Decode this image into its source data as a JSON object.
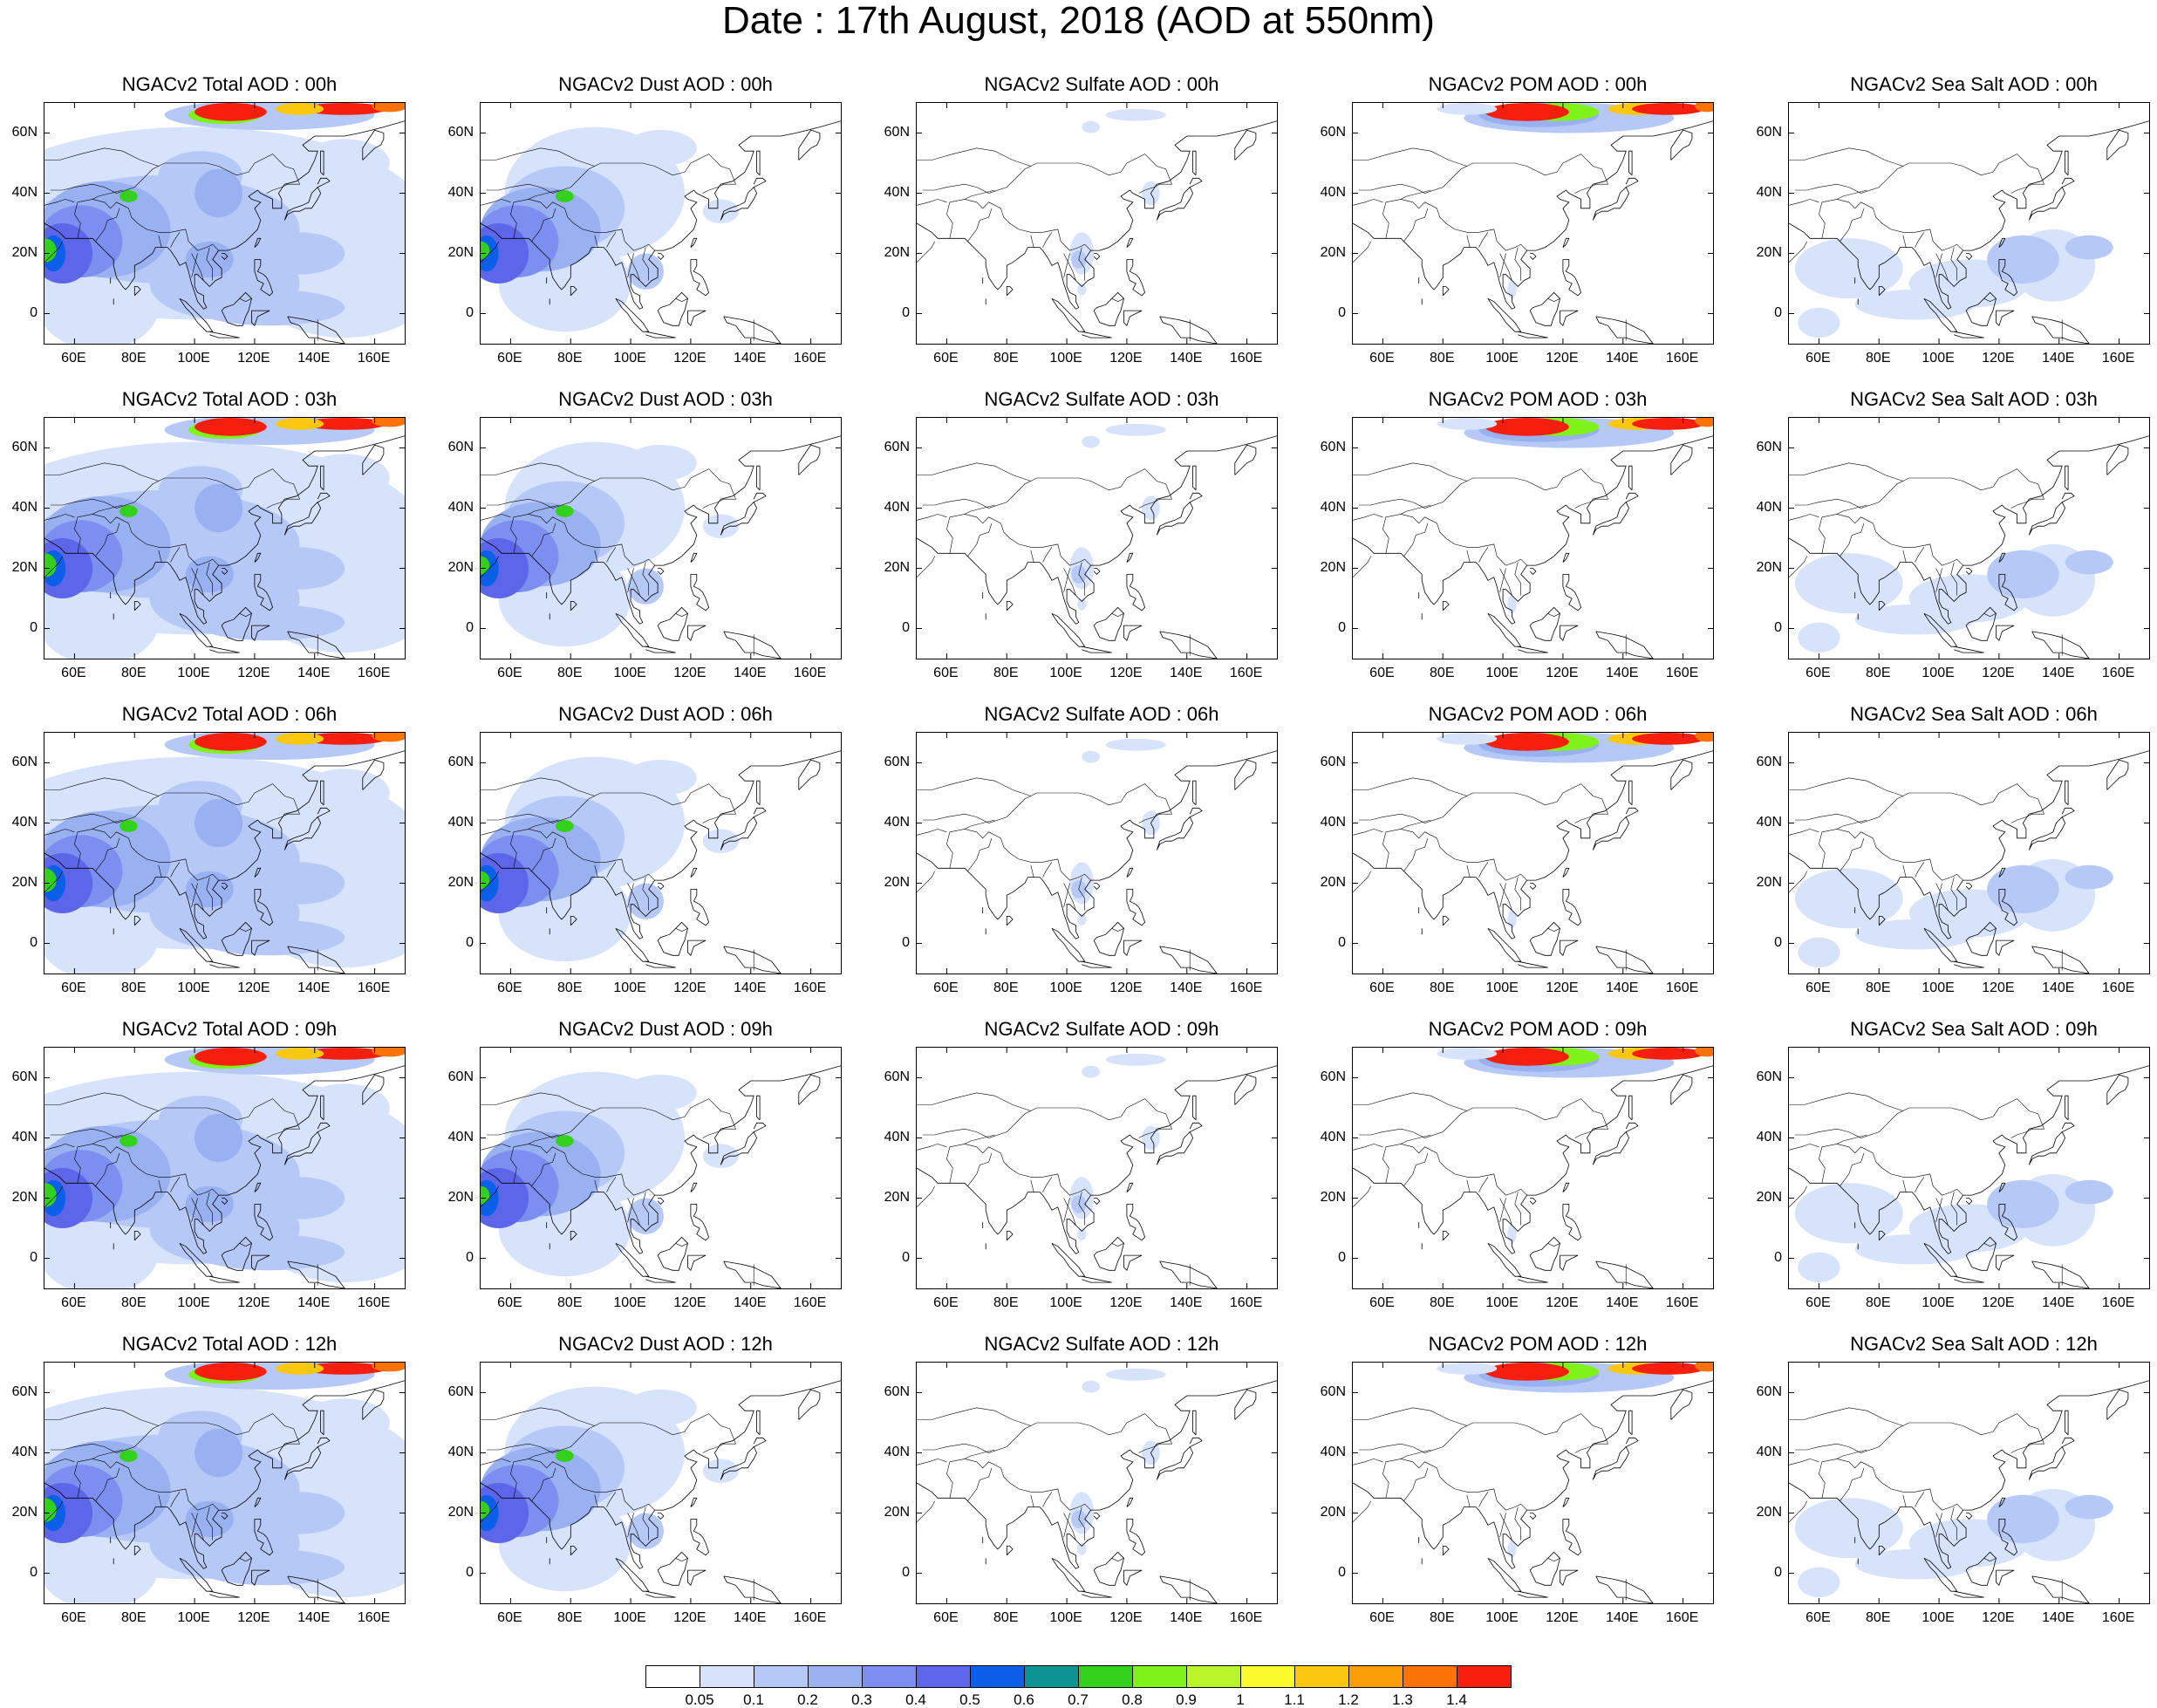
{
  "title": "Date : 17th August, 2018 (AOD at 550nm)",
  "axes": {
    "lat_labels": [
      "60N",
      "40N",
      "20N",
      "0"
    ],
    "lon_labels": [
      "60E",
      "80E",
      "100E",
      "120E",
      "140E",
      "160E"
    ]
  },
  "colors": {
    "levels": [
      "#ffffff",
      "#d7e2fb",
      "#b6c8f6",
      "#99b0f1",
      "#7c8ff0",
      "#5d66e8",
      "#0b5fe8",
      "#0e9493",
      "#33d11c",
      "#7ef219",
      "#b9f52b",
      "#fbfa2b",
      "#fcc70f",
      "#fb9d09",
      "#f97308",
      "#f61f0e"
    ]
  },
  "colorbar": {
    "labels": [
      "0.05",
      "0.1",
      "0.2",
      "0.3",
      "0.4",
      "0.5",
      "0.6",
      "0.7",
      "0.8",
      "0.9",
      "1",
      "1.1",
      "1.2",
      "1.3",
      "1.4"
    ]
  },
  "panels": [
    {
      "title": "NGACv2 Total AOD : 00h",
      "type": "total"
    },
    {
      "title": "NGACv2 Dust AOD : 00h",
      "type": "dust"
    },
    {
      "title": "NGACv2 Sulfate AOD : 00h",
      "type": "sulfate"
    },
    {
      "title": "NGACv2 POM AOD : 00h",
      "type": "pom"
    },
    {
      "title": "NGACv2 Sea Salt AOD : 00h",
      "type": "seasalt"
    },
    {
      "title": "NGACv2 Total AOD : 03h",
      "type": "total"
    },
    {
      "title": "NGACv2 Dust AOD : 03h",
      "type": "dust"
    },
    {
      "title": "NGACv2 Sulfate AOD : 03h",
      "type": "sulfate"
    },
    {
      "title": "NGACv2 POM AOD : 03h",
      "type": "pom"
    },
    {
      "title": "NGACv2 Sea Salt AOD : 03h",
      "type": "seasalt"
    },
    {
      "title": "NGACv2 Total AOD : 06h",
      "type": "total"
    },
    {
      "title": "NGACv2 Dust AOD : 06h",
      "type": "dust"
    },
    {
      "title": "NGACv2 Sulfate AOD : 06h",
      "type": "sulfate"
    },
    {
      "title": "NGACv2 POM AOD : 06h",
      "type": "pom"
    },
    {
      "title": "NGACv2 Sea Salt AOD : 06h",
      "type": "seasalt"
    },
    {
      "title": "NGACv2 Total AOD : 09h",
      "type": "total"
    },
    {
      "title": "NGACv2 Dust AOD : 09h",
      "type": "dust"
    },
    {
      "title": "NGACv2 Sulfate AOD : 09h",
      "type": "sulfate"
    },
    {
      "title": "NGACv2 POM AOD : 09h",
      "type": "pom"
    },
    {
      "title": "NGACv2 Sea Salt  AOD : 09h",
      "type": "seasalt"
    },
    {
      "title": "NGACv2 Total AOD  : 12h",
      "type": "total"
    },
    {
      "title": "NGACv2 Dust AOD : 12h",
      "type": "dust"
    },
    {
      "title": "NGACv2 Sulfate AOD : 12h",
      "type": "sulfate"
    },
    {
      "title": "NGACv2 POM  AOD : 12h",
      "type": "pom"
    },
    {
      "title": "NGACv2 Sea Salt  AOD : 12h",
      "type": "seasalt"
    }
  ]
}
